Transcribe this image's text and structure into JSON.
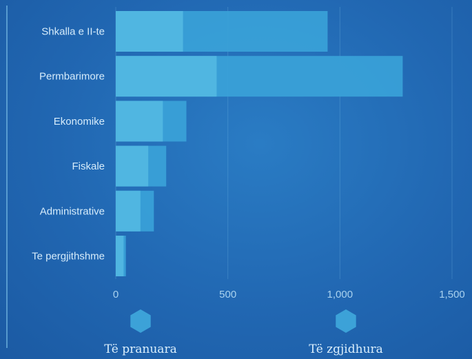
{
  "chart_data": {
    "type": "bar",
    "orientation": "horizontal",
    "stacked": false,
    "categories": [
      "Shkalla e II-te",
      "Permbarimore",
      "Ekonomike",
      "Fiskale",
      "Administrative",
      "Te pergjithshme"
    ],
    "series": [
      {
        "name": "Të pranuara",
        "values": [
          300,
          450,
          210,
          145,
          110,
          35
        ],
        "color": "#53b8e2"
      },
      {
        "name": "Të zgjidhura",
        "values": [
          945,
          1280,
          315,
          225,
          170,
          45
        ],
        "color": "#3aa2d8"
      }
    ],
    "xlim": [
      0,
      1500
    ],
    "xticks": [
      "0",
      "500",
      "1,000",
      "1,500"
    ],
    "xtick_values": [
      0,
      500,
      1000,
      1500
    ],
    "grid": true,
    "legend_position": "bottom",
    "title": "",
    "xlabel": "",
    "ylabel": "",
    "colors": {
      "background": "#2167b2",
      "axis": "#7fc3ea",
      "legend_marker": "#3fa9dd"
    }
  }
}
